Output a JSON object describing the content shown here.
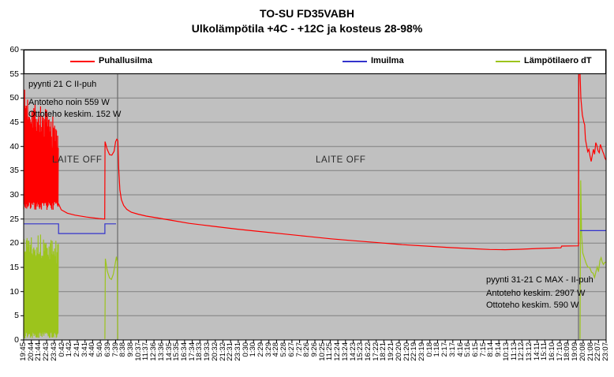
{
  "chart_data": {
    "type": "line",
    "title": "TO-SU FD35VABH",
    "subtitle": "Ulkolämpötila +4C - +12C ja kosteus 28-98%",
    "ylim": [
      0,
      60
    ],
    "ytick_step": 5,
    "y_tick_labels": [
      "0",
      "5",
      "10",
      "15",
      "20",
      "25",
      "30",
      "35",
      "40",
      "45",
      "50",
      "55",
      "60"
    ],
    "plot_bg": "#C0C0C0",
    "grid": {
      "horizontal_step": 5,
      "color": "#808080",
      "vertical_event_lines_at_label_index": [
        12.25,
        72.4
      ],
      "vertical_line_color": "#6a6a6a"
    },
    "legend": {
      "position": "top-inside-band",
      "background": "#FFFFFF"
    },
    "x_labels": [
      "19:45",
      "20:44",
      "21:44",
      "22:43",
      "23:43",
      "0:42",
      "1:42",
      "2:41",
      "3:41",
      "4:40",
      "5:40",
      "6:39",
      "7:39",
      "8:38",
      "9:38",
      "10:37",
      "11:37",
      "12:36",
      "13:36",
      "14:35",
      "15:35",
      "16:34",
      "17:34",
      "18:33",
      "19:33",
      "20:32",
      "21:32",
      "22:31",
      "23:31",
      "0:30",
      "1:30",
      "2:29",
      "3:29",
      "4:28",
      "5:28",
      "6:27",
      "7:27",
      "8:26",
      "9:26",
      "10:25",
      "11:25",
      "12:24",
      "13:24",
      "14:23",
      "15:23",
      "16:22",
      "17:22",
      "18:21",
      "19:21",
      "20:20",
      "21:20",
      "22:19",
      "23:19",
      "0:18",
      "1:18",
      "2:17",
      "3:17",
      "4:16",
      "5:16",
      "6:15",
      "7:15",
      "8:14",
      "9:14",
      "10:13",
      "11:13",
      "12:12",
      "13:12",
      "14:11",
      "15:11",
      "16:10",
      "17:10",
      "18:09",
      "19:09",
      "20:08",
      "21:08",
      "22:07",
      "23:07"
    ],
    "series": [
      {
        "name": "Puhallusilma",
        "color": "#FF0000",
        "segments": [
          {
            "kind": "noise",
            "seed": 7,
            "x0": 0,
            "x1": 4.53,
            "lo": 26.9,
            "lo_jit": 1.6,
            "hi_start": 48.5,
            "hi_end": 42,
            "hi_jit": 3.5,
            "step": 0.08
          },
          {
            "kind": "line",
            "points": [
              [
                4.53,
                28.2
              ],
              [
                4.9,
                26.9
              ],
              [
                5.7,
                26.2
              ],
              [
                6.7,
                25.8
              ],
              [
                8.2,
                25.4
              ],
              [
                9.8,
                25.1
              ],
              [
                10.58,
                25.0
              ],
              [
                10.62,
                41.0
              ],
              [
                10.9,
                39.4
              ],
              [
                11.2,
                38.3
              ],
              [
                11.5,
                38.2
              ],
              [
                11.8,
                39.0
              ],
              [
                12.0,
                41.0
              ],
              [
                12.15,
                41.5
              ],
              [
                12.3,
                41.2
              ],
              [
                12.4,
                35.5
              ],
              [
                12.55,
                31.0
              ],
              [
                12.75,
                29.0
              ],
              [
                13.05,
                27.8
              ],
              [
                13.45,
                27.0
              ],
              [
                14.05,
                26.4
              ],
              [
                14.9,
                26.0
              ],
              [
                16.0,
                25.6
              ],
              [
                17.5,
                25.2
              ],
              [
                19.0,
                24.8
              ],
              [
                21.6,
                24.1
              ],
              [
                24.7,
                23.5
              ],
              [
                27.8,
                22.9
              ],
              [
                30.9,
                22.4
              ],
              [
                34.0,
                21.9
              ],
              [
                37.0,
                21.4
              ],
              [
                40.1,
                20.9
              ],
              [
                43.2,
                20.5
              ],
              [
                46.3,
                20.1
              ],
              [
                49.4,
                19.7
              ],
              [
                52.5,
                19.4
              ],
              [
                55.6,
                19.1
              ],
              [
                58.7,
                18.85
              ],
              [
                60.8,
                18.7
              ],
              [
                62.8,
                18.65
              ],
              [
                64.9,
                18.75
              ],
              [
                66.9,
                18.9
              ],
              [
                69.0,
                19.0
              ],
              [
                70.1,
                19.05
              ],
              [
                70.2,
                19.4
              ],
              [
                72.4,
                19.45
              ],
              [
                72.45,
                55.1
              ],
              [
                72.6,
                55.1
              ],
              [
                72.7,
                50.0
              ],
              [
                72.9,
                46.5
              ],
              [
                73.1,
                45.0
              ],
              [
                73.2,
                44.5
              ],
              [
                73.3,
                41.5
              ],
              [
                73.45,
                40.2
              ],
              [
                73.6,
                38.9
              ],
              [
                73.75,
                39.4
              ],
              [
                73.9,
                38.0
              ],
              [
                74.05,
                36.9
              ],
              [
                74.2,
                38.2
              ],
              [
                74.35,
                39.4
              ],
              [
                74.5,
                38.4
              ],
              [
                74.65,
                40.8
              ],
              [
                74.8,
                40.2
              ],
              [
                74.95,
                39.1
              ],
              [
                75.1,
                38.7
              ],
              [
                75.25,
                40.4
              ],
              [
                75.4,
                39.7
              ],
              [
                75.55,
                39.0
              ],
              [
                75.7,
                38.4
              ],
              [
                75.85,
                37.6
              ],
              [
                75.95,
                37.3
              ],
              [
                76,
                37.6
              ]
            ]
          }
        ]
      },
      {
        "name": "Imuilma",
        "color": "#3333CC",
        "segments": [
          {
            "kind": "line",
            "points": [
              [
                0,
                24
              ],
              [
                4.55,
                24
              ],
              [
                4.55,
                22
              ],
              [
                10.6,
                22
              ],
              [
                10.6,
                24
              ],
              [
                12.05,
                24
              ]
            ]
          },
          {
            "kind": "line",
            "points": [
              [
                72.6,
                22.6
              ],
              [
                76,
                22.6
              ]
            ]
          }
        ]
      },
      {
        "name": "Lämpötilaero dT",
        "color": "#9CC41C",
        "segments": [
          {
            "kind": "noise",
            "seed": 13,
            "x0": 0,
            "x1": 4.5,
            "lo": 0.3,
            "lo_jit": 1.4,
            "hi_start": 20.5,
            "hi_end": 18,
            "hi_jit": 2.5,
            "step": 0.08
          },
          {
            "kind": "line",
            "points": [
              [
                10.6,
                0.2
              ],
              [
                10.66,
                16.8
              ],
              [
                10.9,
                14.3
              ],
              [
                11.2,
                12.8
              ],
              [
                11.45,
                12.5
              ],
              [
                11.7,
                13.6
              ],
              [
                11.95,
                15.8
              ],
              [
                12.1,
                17.2
              ],
              [
                12.2,
                16.2
              ],
              [
                12.28,
                0.2
              ]
            ]
          },
          {
            "kind": "line",
            "points": [
              [
                72.6,
                0.2
              ],
              [
                72.68,
                33.0
              ],
              [
                72.8,
                22.0
              ],
              [
                72.95,
                18.0
              ],
              [
                73.15,
                17.0
              ],
              [
                73.4,
                15.8
              ],
              [
                73.6,
                15.1
              ],
              [
                73.85,
                15.0
              ],
              [
                74.1,
                14.0
              ],
              [
                74.3,
                13.8
              ],
              [
                74.5,
                12.9
              ],
              [
                74.7,
                14.3
              ],
              [
                74.85,
                15.1
              ],
              [
                75.0,
                14.1
              ],
              [
                75.2,
                16.4
              ],
              [
                75.35,
                17.0
              ],
              [
                75.5,
                16.1
              ],
              [
                75.65,
                15.6
              ],
              [
                75.8,
                16.0
              ],
              [
                76,
                16.1
              ]
            ]
          }
        ]
      }
    ]
  },
  "annotations": {
    "top_left": [
      "pyynti 21 C II-puh",
      "Antoteho noin 559 W",
      "Ottoteho keskim. 152 W"
    ],
    "bottom_right": [
      "pyynti 31-21 C MAX - II-puh",
      "Antoteho keskim. 2907 W",
      "Ottoteho keskim. 590 W"
    ],
    "laite_off": [
      "LAITE OFF",
      "LAITE OFF"
    ]
  }
}
